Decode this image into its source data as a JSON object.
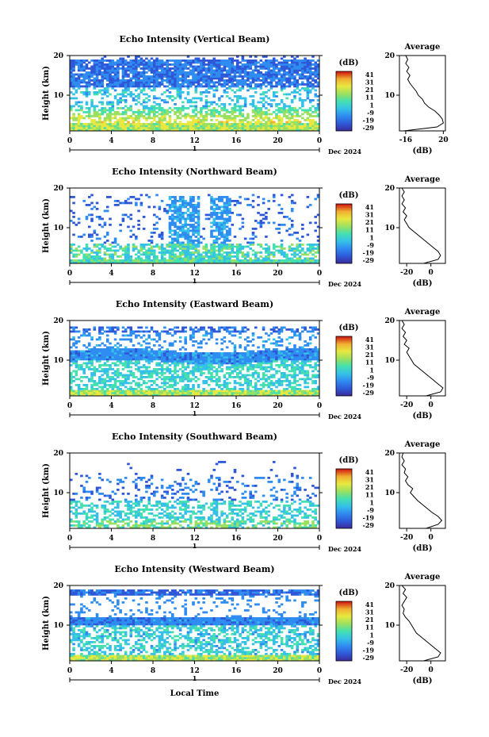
{
  "chart_data": [
    {
      "type": "heatmap",
      "title": "Echo Intensity (Vertical Beam)",
      "ylabel": "Height (km)",
      "xlabel": "",
      "xlim": [
        0,
        24
      ],
      "ylim": [
        1,
        20
      ],
      "xticks": [
        "0",
        "4",
        "8",
        "12",
        "16",
        "20",
        "0"
      ],
      "yticks": [
        "20",
        "10"
      ],
      "day_label": "1",
      "month_label": "Dec 2024",
      "colorbar": {
        "unit": "(dB)",
        "ticks": [
          "41",
          "31",
          "21",
          "11",
          "1",
          "-9",
          "-19",
          "-29"
        ]
      },
      "profile": {
        "title": "Average",
        "xlabel": "(dB)",
        "xticks": [
          "-16",
          "20"
        ],
        "xlim": [
          -22,
          22
        ],
        "yticks": [
          "20",
          "10"
        ],
        "points": [
          [
            -18,
            1
          ],
          [
            14,
            2
          ],
          [
            20,
            3
          ],
          [
            19,
            4
          ],
          [
            16,
            5
          ],
          [
            12,
            6
          ],
          [
            6,
            7
          ],
          [
            2,
            8
          ],
          [
            0,
            9
          ],
          [
            -4,
            10
          ],
          [
            -6,
            11
          ],
          [
            -9,
            12
          ],
          [
            -12,
            13
          ],
          [
            -14,
            14
          ],
          [
            -12,
            15
          ],
          [
            -15,
            16
          ],
          [
            -13,
            17
          ],
          [
            -16,
            18
          ],
          [
            -14,
            19
          ],
          [
            -16,
            20
          ]
        ]
      }
    },
    {
      "type": "heatmap",
      "title": "Echo Intensity (Northward Beam)",
      "ylabel": "Height (km)",
      "xlabel": "",
      "xlim": [
        0,
        24
      ],
      "ylim": [
        1,
        20
      ],
      "xticks": [
        "0",
        "4",
        "8",
        "12",
        "16",
        "20",
        "0"
      ],
      "yticks": [
        "20",
        "10"
      ],
      "day_label": "1",
      "month_label": "Dec 2024",
      "colorbar": {
        "unit": "(dB)",
        "ticks": [
          "41",
          "31",
          "21",
          "11",
          "1",
          "-9",
          "-19",
          "-29"
        ]
      },
      "profile": {
        "title": "Average",
        "xlabel": "(dB)",
        "xticks": [
          "-20",
          "0"
        ],
        "xlim": [
          -26,
          12
        ],
        "yticks": [
          "20",
          "10"
        ],
        "points": [
          [
            -6,
            1
          ],
          [
            6,
            2
          ],
          [
            8,
            3
          ],
          [
            6,
            4
          ],
          [
            2,
            5
          ],
          [
            -2,
            6
          ],
          [
            -6,
            7
          ],
          [
            -10,
            8
          ],
          [
            -14,
            9
          ],
          [
            -18,
            10
          ],
          [
            -20,
            11
          ],
          [
            -22,
            12
          ],
          [
            -20,
            13
          ],
          [
            -23,
            14
          ],
          [
            -21,
            15
          ],
          [
            -24,
            16
          ],
          [
            -22,
            17
          ],
          [
            -24,
            18
          ],
          [
            -22,
            19
          ],
          [
            -24,
            20
          ]
        ]
      }
    },
    {
      "type": "heatmap",
      "title": "Echo Intensity (Eastward Beam)",
      "ylabel": "Height (km)",
      "xlabel": "",
      "xlim": [
        0,
        24
      ],
      "ylim": [
        1,
        20
      ],
      "xticks": [
        "0",
        "4",
        "8",
        "12",
        "16",
        "20",
        "0"
      ],
      "yticks": [
        "20",
        "10"
      ],
      "day_label": "1",
      "month_label": "Dec 2024",
      "colorbar": {
        "unit": "(dB)",
        "ticks": [
          "41",
          "31",
          "21",
          "11",
          "1",
          "-9",
          "-19",
          "-29"
        ]
      },
      "profile": {
        "title": "Average",
        "xlabel": "(dB)",
        "xticks": [
          "-20",
          "0"
        ],
        "xlim": [
          -26,
          12
        ],
        "yticks": [
          "20",
          "10"
        ],
        "points": [
          [
            -4,
            1
          ],
          [
            8,
            2
          ],
          [
            10,
            3
          ],
          [
            6,
            4
          ],
          [
            2,
            5
          ],
          [
            -2,
            6
          ],
          [
            -6,
            7
          ],
          [
            -10,
            8
          ],
          [
            -14,
            9
          ],
          [
            -16,
            10
          ],
          [
            -18,
            11
          ],
          [
            -20,
            12
          ],
          [
            -18,
            13
          ],
          [
            -22,
            14
          ],
          [
            -20,
            15
          ],
          [
            -23,
            16
          ],
          [
            -21,
            17
          ],
          [
            -24,
            18
          ],
          [
            -22,
            19
          ],
          [
            -24,
            20
          ]
        ]
      }
    },
    {
      "type": "heatmap",
      "title": "Echo Intensity (Southward Beam)",
      "ylabel": "Height (km)",
      "xlabel": "",
      "xlim": [
        0,
        24
      ],
      "ylim": [
        1,
        20
      ],
      "xticks": [
        "0",
        "4",
        "8",
        "12",
        "16",
        "20",
        "0"
      ],
      "yticks": [
        "20",
        "10"
      ],
      "day_label": "1",
      "month_label": "Dec 2024",
      "colorbar": {
        "unit": "(dB)",
        "ticks": [
          "41",
          "31",
          "21",
          "11",
          "1",
          "-9",
          "-19",
          "-29"
        ]
      },
      "profile": {
        "title": "Average",
        "xlabel": "(dB)",
        "xticks": [
          "-20",
          "0"
        ],
        "xlim": [
          -26,
          12
        ],
        "yticks": [
          "20",
          "10"
        ],
        "points": [
          [
            -4,
            1
          ],
          [
            6,
            2
          ],
          [
            9,
            3
          ],
          [
            6,
            4
          ],
          [
            1,
            5
          ],
          [
            -3,
            6
          ],
          [
            -7,
            7
          ],
          [
            -11,
            8
          ],
          [
            -14,
            9
          ],
          [
            -17,
            10
          ],
          [
            -15,
            11
          ],
          [
            -19,
            12
          ],
          [
            -21,
            13
          ],
          [
            -19,
            14
          ],
          [
            -22,
            15
          ],
          [
            -21,
            16
          ],
          [
            -24,
            17
          ],
          [
            -22,
            18
          ],
          [
            -24,
            19
          ],
          [
            -23,
            20
          ]
        ]
      }
    },
    {
      "type": "heatmap",
      "title": "Echo Intensity (Westward Beam)",
      "ylabel": "Height (km)",
      "xlabel": "Local Time",
      "xlim": [
        0,
        24
      ],
      "ylim": [
        1,
        20
      ],
      "xticks": [
        "0",
        "4",
        "8",
        "12",
        "16",
        "20",
        "0"
      ],
      "yticks": [
        "20",
        "10"
      ],
      "day_label": "1",
      "month_label": "Dec 2024",
      "colorbar": {
        "unit": "(dB)",
        "ticks": [
          "41",
          "31",
          "21",
          "11",
          "1",
          "-9",
          "-19",
          "-29"
        ]
      },
      "profile": {
        "title": "Average",
        "xlabel": "(dB)",
        "xticks": [
          "-20",
          "0"
        ],
        "xlim": [
          -26,
          12
        ],
        "yticks": [
          "20",
          "10"
        ],
        "points": [
          [
            -6,
            1
          ],
          [
            6,
            2
          ],
          [
            8,
            3
          ],
          [
            4,
            4
          ],
          [
            0,
            5
          ],
          [
            -4,
            6
          ],
          [
            -8,
            7
          ],
          [
            -12,
            8
          ],
          [
            -14,
            9
          ],
          [
            -16,
            10
          ],
          [
            -18,
            11
          ],
          [
            -21,
            12
          ],
          [
            -23,
            13
          ],
          [
            -22,
            14
          ],
          [
            -24,
            15
          ],
          [
            -22,
            16
          ],
          [
            -20,
            17
          ],
          [
            -23,
            18
          ],
          [
            -21,
            19
          ],
          [
            -24,
            20
          ]
        ]
      }
    }
  ],
  "colors": {
    "colormap": [
      "#3a2a9a",
      "#2f58d8",
      "#2f8cf0",
      "#35c0e8",
      "#45e0b0",
      "#9ae060",
      "#e8e840",
      "#f0b030",
      "#f06020",
      "#d01010"
    ]
  }
}
